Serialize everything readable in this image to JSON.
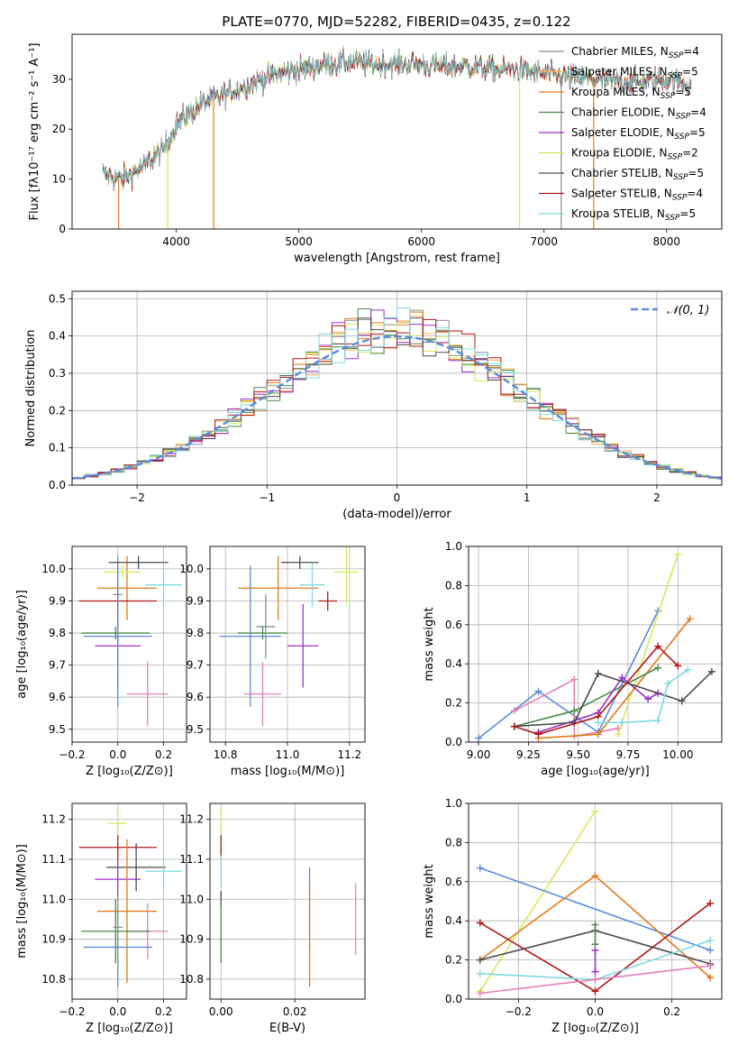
{
  "figure_title": "PLATE=0770, MJD=52282, FIBERID=0435, z=0.122",
  "colors": {
    "Chabrier MILES": "#8c8c8c",
    "Salpeter MILES": "#ffb04d",
    "Kroupa MILES": "#e07b1a",
    "Chabrier ELODIE": "#4a8a4a",
    "Salpeter ELODIE": "#9b30c8",
    "Kroupa ELODIE": "#d4ea5a",
    "Chabrier STELIB": "#4a4a4a",
    "Salpeter STELIB": "#b01818",
    "Kroupa STELIB": "#80d8e0",
    "blue": "#5b8bd9",
    "pink": "#e67fb5",
    "normal": "#5b8bd9"
  },
  "chart_data": [
    {
      "id": "spectrum",
      "type": "line",
      "title": "PLATE=0770, MJD=52282, FIBERID=0435, z=0.122",
      "xlabel": "wavelength [Angstrom, rest frame]",
      "ylabel": "Flux [fλ10⁻¹⁷ erg cm⁻² s⁻¹ A⁻¹]",
      "xlim": [
        3150,
        8450
      ],
      "ylim": [
        0,
        39
      ],
      "xticks": [
        "4000",
        "5000",
        "6000",
        "7000",
        "8000"
      ],
      "yticks": [
        "0",
        "10",
        "20",
        "30"
      ],
      "grid": false,
      "legend": "top-right",
      "continuum": {
        "x": [
          3400,
          3550,
          3700,
          3800,
          3900,
          4000,
          4200,
          4400,
          4600,
          4800,
          5000,
          5200,
          5400,
          5600,
          5800,
          6000,
          6200,
          6400,
          6600,
          6800,
          7000,
          7200,
          7400,
          7600,
          7800,
          8000,
          8200
        ],
        "y": [
          11,
          10,
          12,
          14,
          16,
          21,
          25,
          27,
          29,
          31,
          32,
          33,
          33.5,
          33,
          33,
          33,
          32.5,
          32.5,
          32,
          32,
          31,
          30.5,
          30,
          29.5,
          29.5,
          30,
          29
        ]
      },
      "series": [
        {
          "name": "Chabrier MILES, N$_{SSP}$=4",
          "label": "Chabrier MILES, N",
          "sub": "SSP",
          "tail": "=4"
        },
        {
          "name": "Salpeter MILES, N$_{SSP}$=5",
          "label": "Salpeter MILES, N",
          "sub": "SSP",
          "tail": "=5"
        },
        {
          "name": "Kroupa MILES, N$_{SSP}$=5",
          "label": "Kroupa MILES, N",
          "sub": "SSP",
          "tail": "=5"
        },
        {
          "name": "Chabrier ELODIE, N$_{SSP}$=4",
          "label": "Chabrier ELODIE, N",
          "sub": "SSP",
          "tail": "=4"
        },
        {
          "name": "Salpeter ELODIE, N$_{SSP}$=5",
          "label": "Salpeter ELODIE, N",
          "sub": "SSP",
          "tail": "=5"
        },
        {
          "name": "Kroupa ELODIE, N$_{SSP}$=2",
          "label": "Kroupa ELODIE, N",
          "sub": "SSP",
          "tail": "=2"
        },
        {
          "name": "Chabrier STELIB, N$_{SSP}$=5",
          "label": "Chabrier STELIB, N",
          "sub": "SSP",
          "tail": "=5"
        },
        {
          "name": "Salpeter STELIB, N$_{SSP}$=4",
          "label": "Salpeter STELIB, N",
          "sub": "SSP",
          "tail": "=4"
        },
        {
          "name": "Kroupa STELIB, N$_{SSP}$=5",
          "label": "Kroupa STELIB, N",
          "sub": "SSP",
          "tail": "=5"
        }
      ]
    },
    {
      "id": "residuals",
      "type": "line",
      "xlabel": "(data-model)/error",
      "ylabel": "Normed distribution",
      "xlim": [
        -2.5,
        2.5
      ],
      "ylim": [
        0,
        0.52
      ],
      "xticks": [
        "−2",
        "−1",
        "0",
        "1",
        "2"
      ],
      "yticks": [
        "0.0",
        "0.1",
        "0.2",
        "0.3",
        "0.4",
        "0.5"
      ],
      "grid": true,
      "legend": "top-right",
      "normal_label": "𝒩(0, 1)",
      "hist_bins": 50
    },
    {
      "id": "age_vs_Z",
      "type": "scatter",
      "xlabel": "Z [log₁₀(Z/Z⊙)]",
      "ylabel": "age  [log₁₀(age/yr)]",
      "xlim": [
        -0.2,
        0.3
      ],
      "ylim": [
        9.46,
        10.07
      ],
      "xticks": [
        "−0.2",
        "0.0",
        "0.2"
      ],
      "yticks": [
        "9.5",
        "9.6",
        "9.7",
        "9.8",
        "9.9",
        "10.0"
      ],
      "grid": true,
      "points": [
        {
          "color": "#8c8c8c",
          "x": 0.0,
          "y": 9.92,
          "xerr": 0.02,
          "yerr": 0.12
        },
        {
          "color": "#e07b1a",
          "x": 0.04,
          "y": 9.94,
          "xerr": 0.13,
          "yerr": 0.1
        },
        {
          "color": "#4a8a4a",
          "x": -0.01,
          "y": 9.8,
          "xerr": 0.15,
          "yerr": 0.02
        },
        {
          "color": "#9b30c8",
          "x": 0.0,
          "y": 9.76,
          "xerr": 0.1,
          "yerr": 0.13
        },
        {
          "color": "#d4ea5a",
          "x": 0.02,
          "y": 9.99,
          "xerr": 0.08,
          "yerr": 0.02
        },
        {
          "color": "#4a4a4a",
          "x": 0.09,
          "y": 10.02,
          "xerr": 0.13,
          "yerr": 0.02
        },
        {
          "color": "#b01818",
          "x": 0.0,
          "y": 9.9,
          "xerr": 0.17,
          "yerr": 0.03
        },
        {
          "color": "#80d8e0",
          "x": 0.2,
          "y": 9.95,
          "xerr": 0.08,
          "yerr": 0.07
        },
        {
          "color": "#5b8bd9",
          "x": 0.0,
          "y": 9.79,
          "xerr": 0.15,
          "yerr": 0.22
        },
        {
          "color": "#e67fb5",
          "x": 0.13,
          "y": 9.61,
          "xerr": 0.09,
          "yerr": 0.1
        }
      ]
    },
    {
      "id": "age_vs_mass",
      "type": "scatter",
      "xlabel": "mass [log₁₀(M/M⊙)]",
      "xlim": [
        10.75,
        11.25
      ],
      "ylim": [
        9.46,
        10.07
      ],
      "xticks": [
        "10.8",
        "11.0",
        "11.2"
      ],
      "yticks": [
        "9.5",
        "9.6",
        "9.7",
        "9.8",
        "9.9",
        "10.0"
      ],
      "grid": true,
      "points": [
        {
          "color": "#e07b1a",
          "x": 10.97,
          "y": 9.94,
          "xerr": 0.13,
          "yerr": 0.1
        },
        {
          "color": "#4a8a4a",
          "x": 10.92,
          "y": 9.8,
          "xerr": 0.08,
          "yerr": 0.02
        },
        {
          "color": "#9b30c8",
          "x": 11.05,
          "y": 9.76,
          "xerr": 0.05,
          "yerr": 0.13
        },
        {
          "color": "#d4ea5a",
          "x": 11.19,
          "y": 9.99,
          "xerr": 0.04,
          "yerr": 0.1
        },
        {
          "color": "#4a4a4a",
          "x": 11.04,
          "y": 10.02,
          "xerr": 0.06,
          "yerr": 0.02
        },
        {
          "color": "#b01818",
          "x": 11.13,
          "y": 9.9,
          "xerr": 0.03,
          "yerr": 0.03
        },
        {
          "color": "#80d8e0",
          "x": 11.08,
          "y": 9.95,
          "xerr": 0.04,
          "yerr": 0.07
        },
        {
          "color": "#5b8bd9",
          "x": 10.88,
          "y": 9.79,
          "xerr": 0.1,
          "yerr": 0.22
        },
        {
          "color": "#e67fb5",
          "x": 10.92,
          "y": 9.61,
          "xerr": 0.06,
          "yerr": 0.1
        },
        {
          "color": "#8c8c8c",
          "x": 10.93,
          "y": 9.82,
          "xerr": 0.03,
          "yerr": 0.1
        }
      ]
    },
    {
      "id": "weight_vs_age",
      "type": "line",
      "xlabel": "age  [log₁₀(age/yr)]",
      "ylabel": "mass weight",
      "xlim": [
        8.95,
        10.22
      ],
      "ylim": [
        0,
        1
      ],
      "xticks": [
        "9.00",
        "9.25",
        "9.50",
        "9.75",
        "10.00"
      ],
      "yticks": [
        "0.0",
        "0.2",
        "0.4",
        "0.6",
        "0.8",
        "1.0"
      ],
      "grid": true,
      "series": [
        {
          "color": "#5b8bd9",
          "x": [
            9.0,
            9.3,
            9.6,
            9.9
          ],
          "y": [
            0.02,
            0.26,
            0.05,
            0.67
          ]
        },
        {
          "color": "#e67fb5",
          "x": [
            9.18,
            9.48,
            9.48,
            9.7
          ],
          "y": [
            0.16,
            0.32,
            0.03,
            0.07
          ]
        },
        {
          "color": "#d4ea5a",
          "x": [
            9.7,
            10.0
          ],
          "y": [
            0.04,
            0.96
          ]
        },
        {
          "color": "#e07b1a",
          "x": [
            9.3,
            9.6,
            10.06
          ],
          "y": [
            0.02,
            0.04,
            0.63
          ]
        },
        {
          "color": "#4a8a4a",
          "x": [
            9.18,
            9.48,
            9.9
          ],
          "y": [
            0.08,
            0.16,
            0.38
          ]
        },
        {
          "color": "#9b30c8",
          "x": [
            9.3,
            9.6,
            9.72,
            9.85,
            9.9
          ],
          "y": [
            0.05,
            0.15,
            0.33,
            0.22,
            0.25
          ]
        },
        {
          "color": "#4a4a4a",
          "x": [
            9.18,
            9.48,
            9.6,
            10.02,
            10.17
          ],
          "y": [
            0.08,
            0.1,
            0.35,
            0.21,
            0.36
          ]
        },
        {
          "color": "#b01818",
          "x": [
            9.18,
            9.3,
            9.6,
            9.9,
            10.0
          ],
          "y": [
            0.08,
            0.04,
            0.13,
            0.49,
            0.39
          ]
        },
        {
          "color": "#80d8e0",
          "x": [
            9.6,
            9.72,
            9.9,
            9.95,
            10.05
          ],
          "y": [
            0.1,
            0.1,
            0.11,
            0.3,
            0.37
          ]
        }
      ]
    },
    {
      "id": "mass_vs_Z",
      "type": "scatter",
      "xlabel": "Z [log₁₀(Z/Z⊙)]",
      "ylabel": "mass [log₁₀(M/M⊙)]",
      "xlim": [
        -0.2,
        0.3
      ],
      "ylim": [
        10.75,
        11.24
      ],
      "xticks": [
        "−0.2",
        "0.0",
        "0.2"
      ],
      "yticks": [
        "10.8",
        "10.9",
        "11.0",
        "11.1",
        "11.2"
      ],
      "grid": true,
      "points": [
        {
          "color": "#d4ea5a",
          "x": 0.0,
          "y": 11.19,
          "xerr": 0.04,
          "yerr": 0.04
        },
        {
          "color": "#b01818",
          "x": 0.0,
          "y": 11.13,
          "xerr": 0.17,
          "yerr": 0.03
        },
        {
          "color": "#4a4a4a",
          "x": 0.08,
          "y": 11.08,
          "xerr": 0.13,
          "yerr": 0.06
        },
        {
          "color": "#80d8e0",
          "x": 0.2,
          "y": 11.07,
          "xerr": 0.08,
          "yerr": 0.04
        },
        {
          "color": "#9b30c8",
          "x": 0.0,
          "y": 11.05,
          "xerr": 0.1,
          "yerr": 0.05
        },
        {
          "color": "#e07b1a",
          "x": 0.04,
          "y": 10.97,
          "xerr": 0.13,
          "yerr": 0.18
        },
        {
          "color": "#e67fb5",
          "x": 0.13,
          "y": 10.92,
          "xerr": 0.09,
          "yerr": 0.07
        },
        {
          "color": "#4a8a4a",
          "x": -0.01,
          "y": 10.92,
          "xerr": 0.15,
          "yerr": 0.08
        },
        {
          "color": "#5b8bd9",
          "x": 0.0,
          "y": 10.88,
          "xerr": 0.15,
          "yerr": 0.1
        },
        {
          "color": "#8c8c8c",
          "x": 0.0,
          "y": 10.93,
          "xerr": 0.02,
          "yerr": 0.08
        }
      ]
    },
    {
      "id": "mass_vs_ebv",
      "type": "scatter",
      "xlabel": "E(B-V)",
      "xlim": [
        -0.003,
        0.039
      ],
      "ylim": [
        10.75,
        11.24
      ],
      "xticks": [
        "0.00",
        "0.02"
      ],
      "yticks": [
        "10.8",
        "10.9",
        "11.0",
        "11.1",
        "11.2"
      ],
      "grid": true,
      "points": [
        {
          "color": "#d4ea5a",
          "x": 0.0,
          "y": 11.19,
          "yerr": 0.04
        },
        {
          "color": "#b01818",
          "x": 0.0,
          "y": 11.13,
          "yerr": 0.03
        },
        {
          "color": "#80d8e0",
          "x": 0.0,
          "y": 11.07,
          "yerr": 0.04
        },
        {
          "color": "#4a4a4a",
          "x": 0.0,
          "y": 11.0,
          "yerr": 0.02
        },
        {
          "color": "#4a8a4a",
          "x": 0.0,
          "y": 10.92,
          "yerr": 0.08
        },
        {
          "color": "#5b8bd9",
          "x": 0.024,
          "y": 10.98,
          "yerr": 0.1
        },
        {
          "color": "#e07b1a",
          "x": 0.024,
          "y": 10.91,
          "yerr": 0.13
        },
        {
          "color": "#e67fb5",
          "x": 0.0365,
          "y": 10.95,
          "yerr": 0.09
        }
      ]
    },
    {
      "id": "weight_vs_Z",
      "type": "line",
      "xlabel": "Z [log₁₀(Z/Z⊙)]",
      "ylabel": "mass weight",
      "xlim": [
        -0.33,
        0.33
      ],
      "ylim": [
        0,
        1
      ],
      "xticks": [
        "−0.2",
        "0.0",
        "0.2"
      ],
      "yticks": [
        "0.0",
        "0.2",
        "0.4",
        "0.6",
        "0.8",
        "1.0"
      ],
      "grid": true,
      "series": [
        {
          "color": "#d4ea5a",
          "x": [
            -0.3,
            0.0
          ],
          "y": [
            0.04,
            0.96
          ]
        },
        {
          "color": "#5b8bd9",
          "x": [
            -0.3,
            0.3
          ],
          "y": [
            0.67,
            0.25
          ]
        },
        {
          "color": "#e07b1a",
          "x": [
            -0.3,
            0.0,
            0.3
          ],
          "y": [
            0.2,
            0.63,
            0.11
          ]
        },
        {
          "color": "#b01818",
          "x": [
            -0.3,
            0.0,
            0.3
          ],
          "y": [
            0.39,
            0.04,
            0.49
          ]
        },
        {
          "color": "#4a4a4a",
          "x": [
            -0.3,
            0.0,
            0.3
          ],
          "y": [
            0.2,
            0.35,
            0.18
          ]
        },
        {
          "color": "#80d8e0",
          "x": [
            -0.3,
            0.0,
            0.3
          ],
          "y": [
            0.13,
            0.1,
            0.3
          ]
        },
        {
          "color": "#e67fb5",
          "x": [
            -0.3,
            0.0,
            0.3
          ],
          "y": [
            0.03,
            0.1,
            0.17
          ]
        },
        {
          "color": "#9b30c8",
          "x": [
            0.0,
            0.0
          ],
          "y": [
            0.14,
            0.25
          ]
        },
        {
          "color": "#4a8a4a",
          "x": [
            0.0,
            0.0
          ],
          "y": [
            0.28,
            0.38
          ]
        }
      ]
    }
  ]
}
